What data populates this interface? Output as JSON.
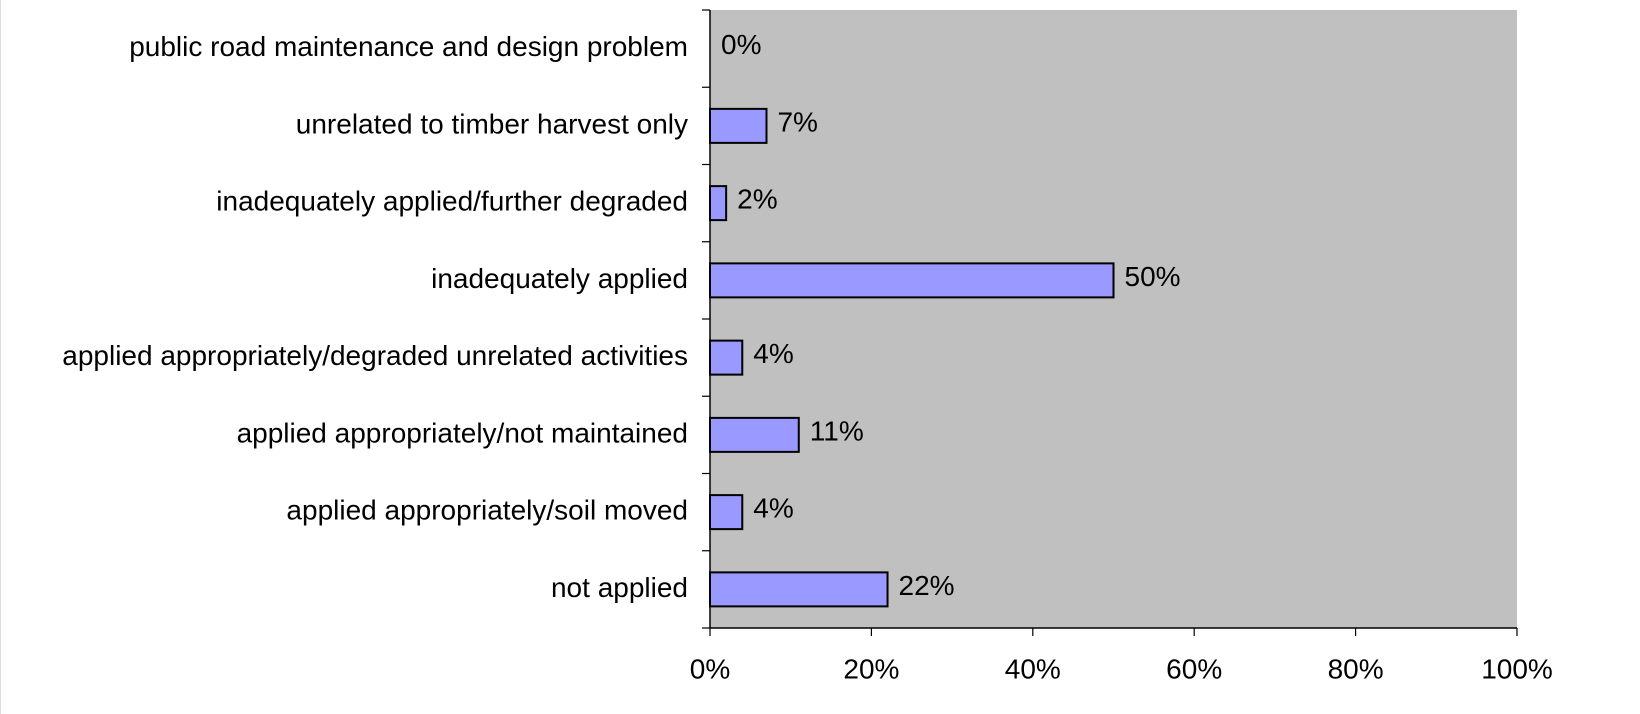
{
  "chart_data": {
    "type": "bar",
    "orientation": "horizontal",
    "categories": [
      "public road maintenance and design problem",
      "unrelated to timber harvest only",
      "inadequately applied/further degraded",
      "inadequately applied",
      "applied appropriately/degraded unrelated activities",
      "applied appropriately/not maintained",
      "applied appropriately/soil moved",
      "not applied"
    ],
    "values": [
      0,
      7,
      2,
      50,
      4,
      11,
      4,
      22
    ],
    "value_labels": [
      "0%",
      "7%",
      "2%",
      "50%",
      "4%",
      "11%",
      "4%",
      "22%"
    ],
    "color": "#9999ff",
    "plot_background": "#c0c0c0",
    "xlim": [
      0,
      100
    ],
    "xticks": [
      {
        "value": 0,
        "label": "0%"
      },
      {
        "value": 20,
        "label": "20%"
      },
      {
        "value": 40,
        "label": "40%"
      },
      {
        "value": 60,
        "label": "60%"
      },
      {
        "value": 80,
        "label": "80%"
      },
      {
        "value": 100,
        "label": "100%"
      }
    ],
    "grid": false
  }
}
